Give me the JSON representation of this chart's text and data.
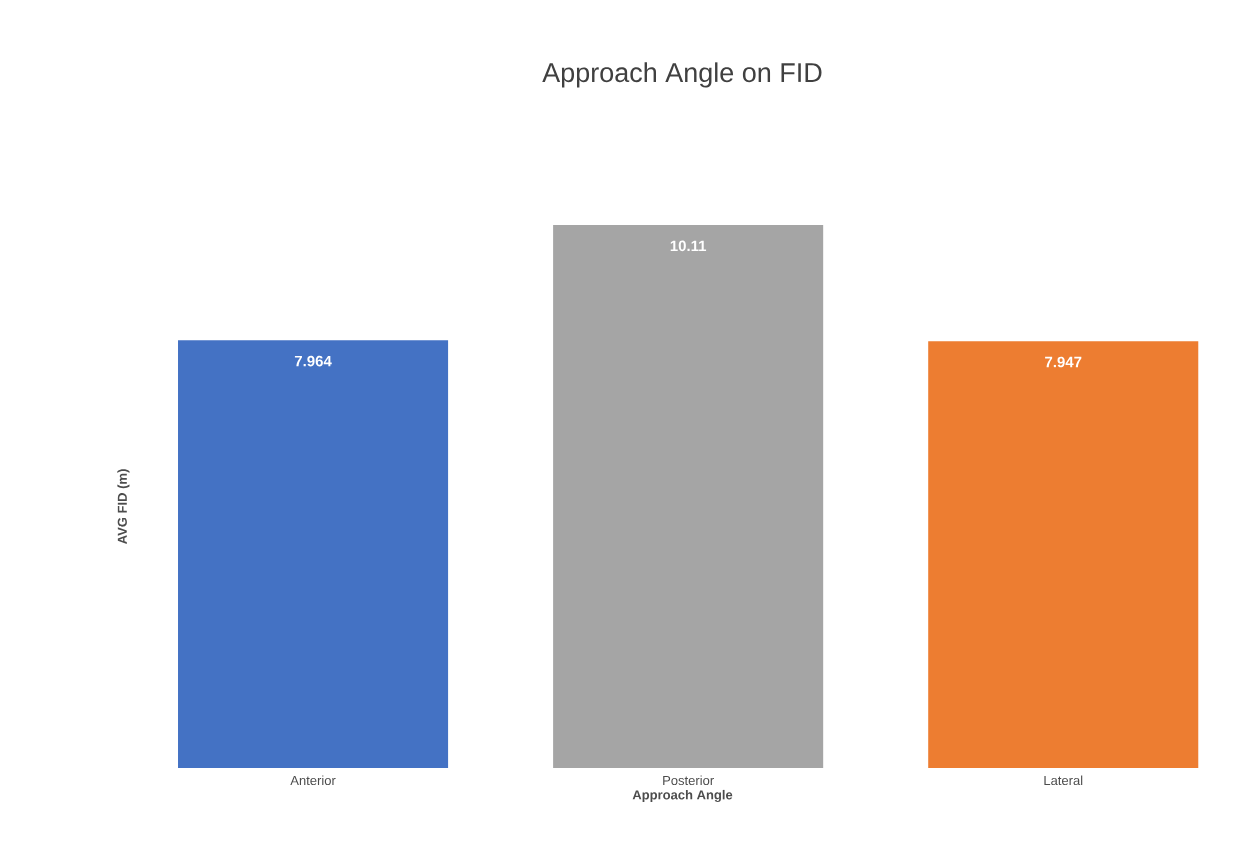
{
  "chart_data": {
    "type": "bar",
    "title": "Approach Angle on FID",
    "xlabel": "Approach Angle",
    "ylabel": "AVG FID (m)",
    "categories": [
      "Anterior",
      "Posterior",
      "Lateral"
    ],
    "values": [
      7.964,
      10.11,
      7.947
    ],
    "colors": [
      "#4472c4",
      "#a5a5a5",
      "#ed7d31"
    ],
    "tick_labels": "x",
    "data_labels": true
  }
}
